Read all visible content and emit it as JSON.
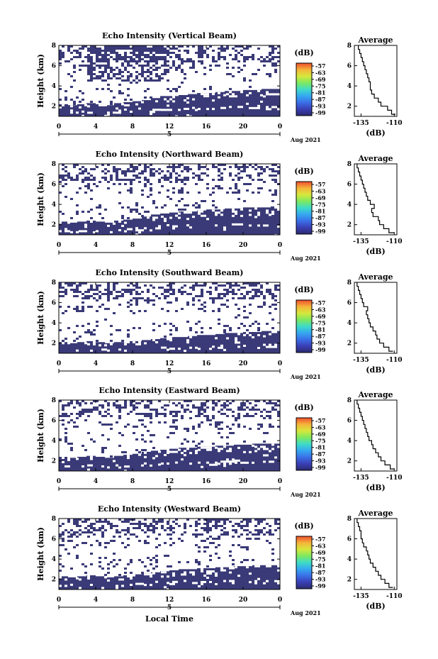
{
  "chart_data": [
    {
      "type": "heatmap",
      "title": "Echo Intensity (Vertical Beam)",
      "ylabel": "Height (km)",
      "x_ticks": [
        "0",
        "4",
        "8",
        "12",
        "16",
        "20",
        "0"
      ],
      "y_ticks": [
        "2",
        "4",
        "6",
        "8"
      ],
      "ylim": [
        1,
        8
      ],
      "xlim": [
        0,
        24
      ],
      "day_label": "5",
      "date_label": "Aug 2021",
      "colorbar": {
        "unit": "(dB)",
        "ticks": [
          "-57",
          "-63",
          "-69",
          "-75",
          "-81",
          "-87",
          "-93",
          "-99"
        ]
      },
      "boundary_height": [
        2.2,
        2.1,
        2.2,
        2.3,
        2.2,
        2.1,
        2.3,
        2.4,
        2.5,
        2.6,
        2.8,
        3.0,
        3.0,
        3.1,
        3.2,
        3.3,
        3.3,
        3.4,
        3.5,
        3.5,
        3.6,
        3.6,
        3.7,
        3.7
      ],
      "upper_echo": "scattered echoes 4.5-8 km, densest 3-12 LT",
      "profile": {
        "title": "Average",
        "xlabel": "(dB)",
        "x_ticks": [
          "-135",
          "-110"
        ],
        "y_ticks": [
          "2",
          "4",
          "6",
          "8"
        ],
        "xlim": [
          -140,
          -108
        ],
        "heights": [
          1.2,
          1.6,
          2.0,
          2.4,
          2.8,
          3.2,
          3.6,
          4.0,
          4.4,
          4.8,
          5.2,
          5.6,
          6.0,
          6.4,
          6.8,
          7.2,
          7.6,
          8.0
        ],
        "values": [
          -109,
          -112,
          -115,
          -120,
          -122,
          -125,
          -127,
          -128,
          -128,
          -129,
          -130,
          -131,
          -132,
          -133,
          -134,
          -135,
          -136,
          -137
        ]
      }
    },
    {
      "type": "heatmap",
      "title": "Echo Intensity (Northward Beam)",
      "ylabel": "Height (km)",
      "x_ticks": [
        "0",
        "4",
        "8",
        "12",
        "16",
        "20",
        "0"
      ],
      "y_ticks": [
        "2",
        "4",
        "6",
        "8"
      ],
      "ylim": [
        1,
        8
      ],
      "xlim": [
        0,
        24
      ],
      "day_label": "5",
      "date_label": "Aug 2021",
      "colorbar": {
        "unit": "(dB)",
        "ticks": [
          "-57",
          "-63",
          "-69",
          "-75",
          "-81",
          "-87",
          "-93",
          "-99"
        ]
      },
      "boundary_height": [
        2.3,
        2.2,
        2.3,
        2.4,
        2.3,
        2.2,
        2.4,
        2.5,
        2.6,
        2.8,
        3.0,
        3.1,
        3.2,
        3.3,
        3.3,
        3.4,
        3.5,
        3.5,
        3.6,
        3.6,
        3.7,
        3.7,
        3.7,
        3.8
      ],
      "upper_echo": "scattered echoes 4.5-8 km across the day",
      "profile": {
        "title": "Average",
        "xlabel": "(dB)",
        "x_ticks": [
          "-135",
          "-110"
        ],
        "y_ticks": [
          "2",
          "4",
          "6",
          "8"
        ],
        "xlim": [
          -140,
          -108
        ],
        "heights": [
          1.2,
          1.6,
          2.0,
          2.4,
          2.8,
          3.2,
          3.6,
          4.0,
          4.4,
          4.8,
          5.2,
          5.6,
          6.0,
          6.4,
          6.8,
          7.2,
          7.6,
          8.0
        ],
        "values": [
          -110,
          -114,
          -118,
          -121,
          -122,
          -126,
          -127,
          -125,
          -128,
          -130,
          -131,
          -132,
          -133,
          -134,
          -135,
          -136,
          -137,
          -138
        ]
      }
    },
    {
      "type": "heatmap",
      "title": "Echo Intensity (Southward Beam)",
      "ylabel": "Height (km)",
      "x_ticks": [
        "0",
        "4",
        "8",
        "12",
        "16",
        "20",
        "0"
      ],
      "y_ticks": [
        "2",
        "4",
        "6",
        "8"
      ],
      "ylim": [
        1,
        8
      ],
      "xlim": [
        0,
        24
      ],
      "day_label": "5",
      "date_label": "Aug 2021",
      "colorbar": {
        "unit": "(dB)",
        "ticks": [
          "-57",
          "-63",
          "-69",
          "-75",
          "-81",
          "-87",
          "-93",
          "-99"
        ]
      },
      "boundary_height": [
        2.1,
        2.0,
        2.1,
        2.2,
        2.1,
        2.0,
        2.1,
        2.2,
        2.2,
        2.3,
        2.4,
        2.5,
        2.6,
        2.6,
        2.7,
        2.8,
        2.8,
        2.9,
        3.0,
        3.0,
        3.1,
        3.1,
        3.2,
        3.2
      ],
      "upper_echo": "scattered echoes 5-8 km, sparse near 4 km",
      "profile": {
        "title": "Average",
        "xlabel": "(dB)",
        "x_ticks": [
          "-135",
          "-110"
        ],
        "y_ticks": [
          "2",
          "4",
          "6",
          "8"
        ],
        "xlim": [
          -140,
          -108
        ],
        "heights": [
          1.2,
          1.6,
          2.0,
          2.4,
          2.8,
          3.2,
          3.6,
          4.0,
          4.4,
          4.8,
          5.2,
          5.6,
          6.0,
          6.4,
          6.8,
          7.2,
          7.6,
          8.0
        ],
        "values": [
          -111,
          -114,
          -118,
          -121,
          -123,
          -124,
          -126,
          -128,
          -129,
          -130,
          -131,
          -130,
          -133,
          -134,
          -135,
          -136,
          -137,
          -138
        ]
      }
    },
    {
      "type": "heatmap",
      "title": "Echo Intensity (Eastward Beam)",
      "ylabel": "Height (km)",
      "x_ticks": [
        "0",
        "4",
        "8",
        "12",
        "16",
        "20",
        "0"
      ],
      "y_ticks": [
        "2",
        "4",
        "6",
        "8"
      ],
      "ylim": [
        1,
        8
      ],
      "xlim": [
        0,
        24
      ],
      "day_label": "5",
      "date_label": "Aug 2021",
      "colorbar": {
        "unit": "(dB)",
        "ticks": [
          "-57",
          "-63",
          "-69",
          "-75",
          "-81",
          "-87",
          "-93",
          "-99"
        ]
      },
      "boundary_height": [
        2.4,
        2.3,
        2.4,
        2.5,
        2.4,
        2.3,
        2.5,
        2.6,
        2.7,
        2.9,
        3.0,
        3.1,
        3.2,
        3.3,
        3.3,
        3.4,
        3.4,
        3.5,
        3.5,
        3.6,
        3.6,
        3.7,
        3.7,
        3.7
      ],
      "upper_echo": "scattered echoes 4.5-8 km, dense bands near 6-7 km",
      "profile": {
        "title": "Average",
        "xlabel": "(dB)",
        "x_ticks": [
          "-135",
          "-110"
        ],
        "y_ticks": [
          "2",
          "4",
          "6",
          "8"
        ],
        "xlim": [
          -140,
          -108
        ],
        "heights": [
          1.2,
          1.6,
          2.0,
          2.4,
          2.8,
          3.2,
          3.6,
          4.0,
          4.4,
          4.8,
          5.2,
          5.6,
          6.0,
          6.4,
          6.8,
          7.2,
          7.6,
          8.0
        ],
        "values": [
          -110,
          -113,
          -117,
          -120,
          -122,
          -124,
          -126,
          -127,
          -129,
          -130,
          -131,
          -132,
          -133,
          -134,
          -135,
          -136,
          -137,
          -138
        ]
      }
    },
    {
      "type": "heatmap",
      "title": "Echo Intensity (Westward Beam)",
      "ylabel": "Height (km)",
      "xlabel": "Local Time",
      "x_ticks": [
        "0",
        "4",
        "8",
        "12",
        "16",
        "20",
        "0"
      ],
      "y_ticks": [
        "2",
        "4",
        "6",
        "8"
      ],
      "ylim": [
        1,
        8
      ],
      "xlim": [
        0,
        24
      ],
      "day_label": "5",
      "date_label": "Aug 2021",
      "colorbar": {
        "unit": "(dB)",
        "ticks": [
          "-57",
          "-63",
          "-69",
          "-75",
          "-81",
          "-87",
          "-93",
          "-99"
        ]
      },
      "boundary_height": [
        2.3,
        2.2,
        2.3,
        2.4,
        2.3,
        2.2,
        2.3,
        2.4,
        2.5,
        2.6,
        2.7,
        2.8,
        2.9,
        3.0,
        3.0,
        3.1,
        3.1,
        3.2,
        3.2,
        3.3,
        3.3,
        3.4,
        3.4,
        3.4
      ],
      "upper_echo": "scattered echoes 5-8 km, sparse after 12 LT",
      "profile": {
        "title": "Average",
        "xlabel": "(dB)",
        "x_ticks": [
          "-135",
          "-110"
        ],
        "y_ticks": [
          "2",
          "4",
          "6",
          "8"
        ],
        "xlim": [
          -140,
          -108
        ],
        "heights": [
          1.2,
          1.6,
          2.0,
          2.4,
          2.8,
          3.2,
          3.6,
          4.0,
          4.4,
          4.8,
          5.2,
          5.6,
          6.0,
          6.4,
          6.8,
          7.2,
          7.6,
          8.0
        ],
        "values": [
          -111,
          -114,
          -117,
          -120,
          -122,
          -124,
          -126,
          -128,
          -129,
          -130,
          -131,
          -133,
          -134,
          -135,
          -135,
          -136,
          -137,
          -138
        ]
      }
    }
  ],
  "colors": {
    "echo": "#3a3a78",
    "colorbar_scale": [
      "#2b2b6e",
      "#3a3fb5",
      "#3a6fe8",
      "#35a8f0",
      "#3fdcc8",
      "#7ee860",
      "#d6e83c",
      "#f5b43a",
      "#ee4e2e"
    ]
  }
}
